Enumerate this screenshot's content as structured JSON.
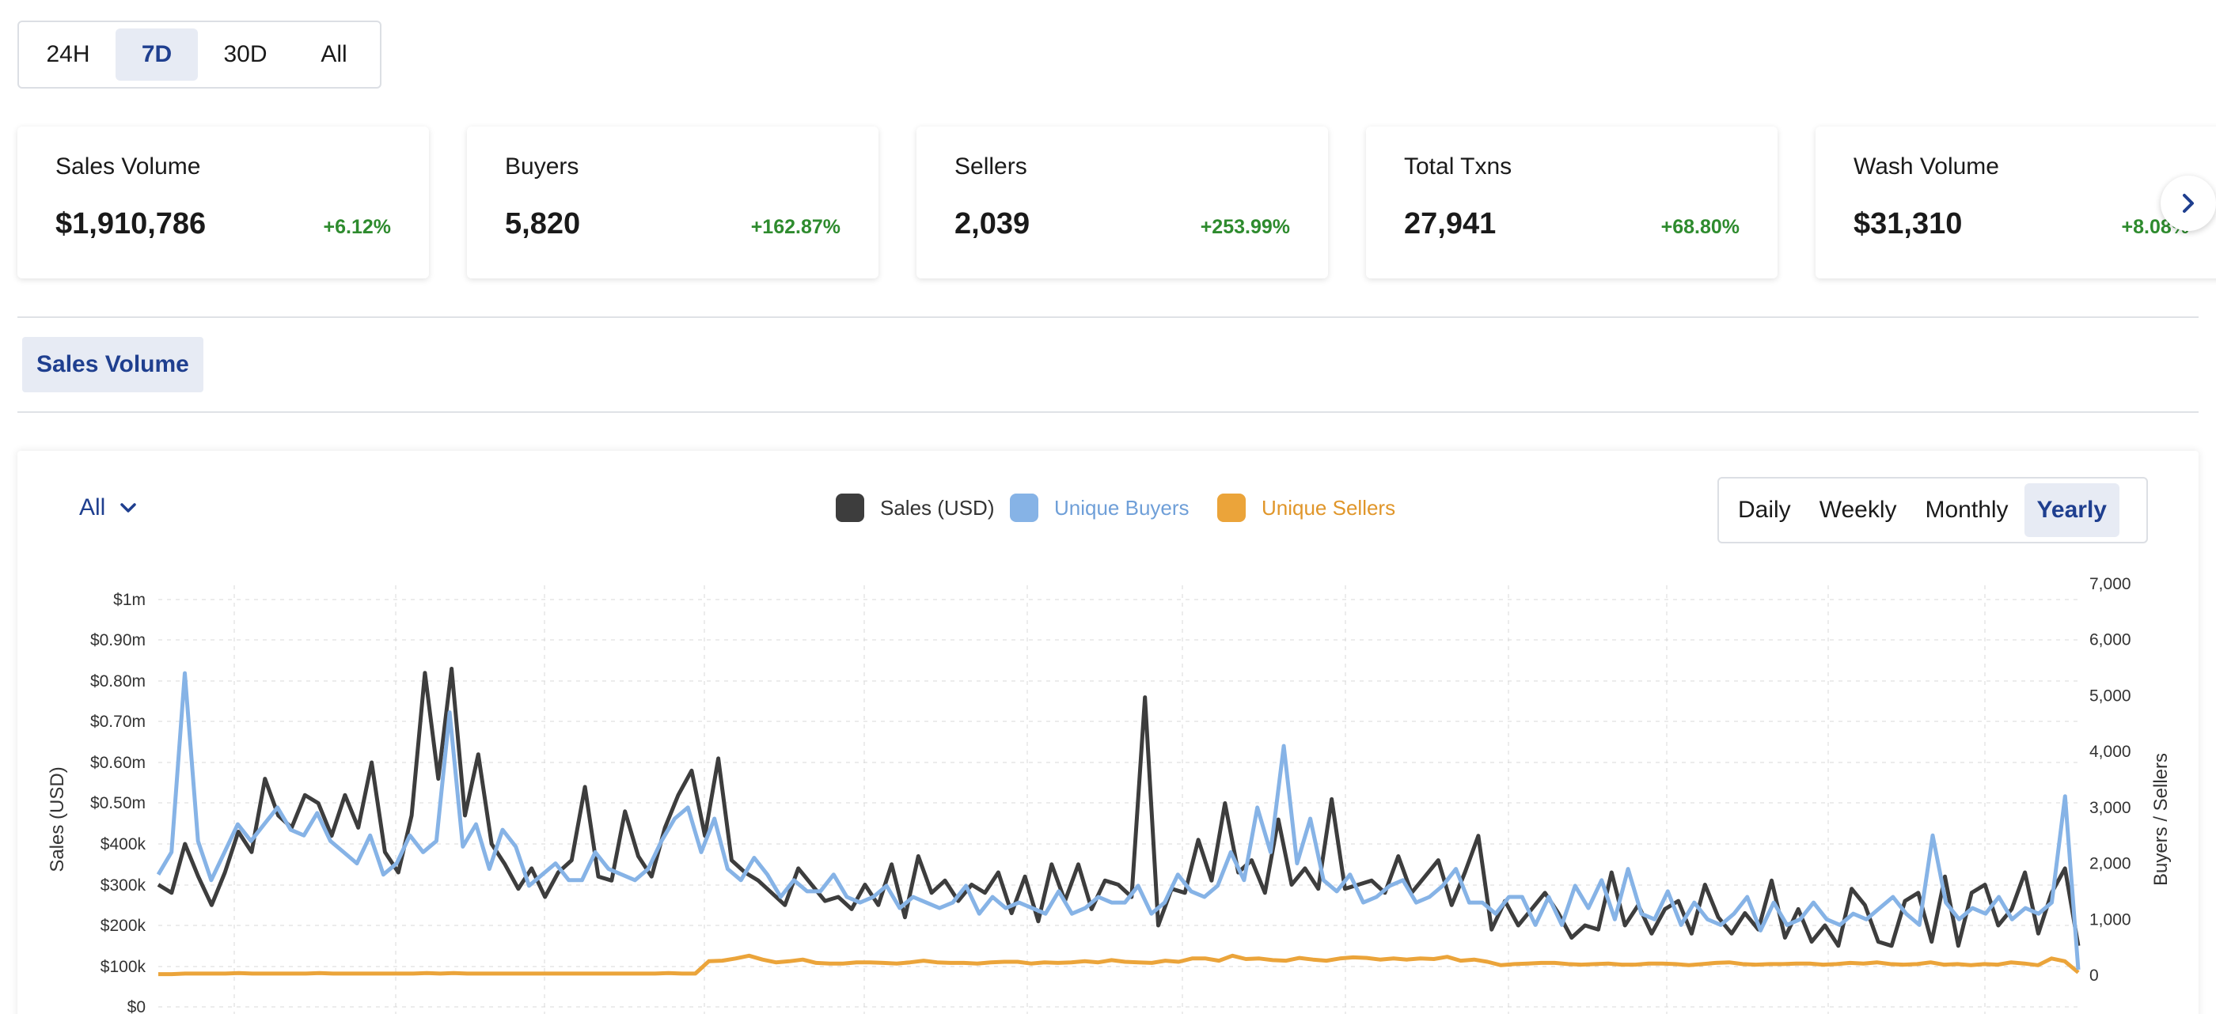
{
  "range": {
    "options": [
      "24H",
      "7D",
      "30D",
      "All"
    ],
    "selected": "7D"
  },
  "stats": [
    {
      "title": "Sales Volume",
      "value": "$1,910,786",
      "change": "+6.12%"
    },
    {
      "title": "Buyers",
      "value": "5,820",
      "change": "+162.87%"
    },
    {
      "title": "Sellers",
      "value": "2,039",
      "change": "+253.99%"
    },
    {
      "title": "Total Txns",
      "value": "27,941",
      "change": "+68.80%"
    },
    {
      "title": "Wash Volume",
      "value": "$31,310",
      "change": "+8.08%"
    }
  ],
  "tabs": {
    "active": "Sales Volume"
  },
  "filter": {
    "label": "All"
  },
  "periods": {
    "options": [
      "Daily",
      "Weekly",
      "Monthly",
      "Yearly"
    ],
    "selected": "Yearly"
  },
  "colors": {
    "sales": "#3d3d3d",
    "buyers": "#86b3e6",
    "sellers": "#eba43a",
    "accent": "#1f3f8f",
    "positive": "#2e8b2e"
  },
  "chart_data": {
    "type": "line",
    "legend": [
      "Sales (USD)",
      "Unique Buyers",
      "Unique Sellers"
    ],
    "ylabel_left": "Sales (USD)",
    "ylabel_right": "Buyers / Sellers",
    "y_left_ticks": [
      "$0",
      "$100k",
      "$200k",
      "$300k",
      "$400k",
      "$0.50m",
      "$0.60m",
      "$0.70m",
      "$0.80m",
      "$0.90m",
      "$1m"
    ],
    "y_right_ticks": [
      "0",
      "1,000",
      "2,000",
      "3,000",
      "4,000",
      "5,000",
      "6,000",
      "7,000"
    ],
    "ylim_left": [
      0,
      1000000
    ],
    "ylim_right": [
      0,
      7000
    ],
    "grid": true,
    "series": [
      {
        "name": "Sales (USD)",
        "axis": "left",
        "values": [
          300000,
          280000,
          400000,
          320000,
          250000,
          330000,
          430000,
          380000,
          560000,
          470000,
          440000,
          520000,
          500000,
          420000,
          520000,
          440000,
          600000,
          380000,
          330000,
          470000,
          820000,
          560000,
          830000,
          470000,
          620000,
          400000,
          350000,
          290000,
          340000,
          270000,
          330000,
          360000,
          540000,
          320000,
          310000,
          480000,
          370000,
          320000,
          440000,
          520000,
          580000,
          420000,
          610000,
          360000,
          330000,
          310000,
          280000,
          250000,
          340000,
          300000,
          260000,
          270000,
          240000,
          300000,
          250000,
          350000,
          220000,
          370000,
          280000,
          310000,
          260000,
          300000,
          280000,
          330000,
          230000,
          320000,
          210000,
          350000,
          260000,
          350000,
          240000,
          310000,
          300000,
          270000,
          760000,
          200000,
          290000,
          280000,
          410000,
          310000,
          500000,
          330000,
          360000,
          280000,
          460000,
          300000,
          340000,
          290000,
          510000,
          290000,
          300000,
          310000,
          280000,
          370000,
          280000,
          320000,
          360000,
          250000,
          330000,
          420000,
          190000,
          260000,
          200000,
          240000,
          280000,
          230000,
          170000,
          200000,
          190000,
          330000,
          200000,
          250000,
          180000,
          240000,
          260000,
          180000,
          300000,
          220000,
          180000,
          230000,
          190000,
          310000,
          170000,
          240000,
          160000,
          200000,
          150000,
          290000,
          250000,
          160000,
          150000,
          260000,
          280000,
          160000,
          320000,
          150000,
          280000,
          300000,
          200000,
          240000,
          330000,
          180000,
          280000,
          340000,
          150000
        ]
      },
      {
        "name": "Unique Buyers",
        "axis": "right",
        "values": [
          1800,
          2200,
          5400,
          2400,
          1700,
          2200,
          2700,
          2400,
          2700,
          3000,
          2600,
          2500,
          2900,
          2400,
          2200,
          2000,
          2500,
          1800,
          2000,
          2500,
          2200,
          2400,
          4700,
          2300,
          2700,
          1900,
          2600,
          2300,
          1600,
          1800,
          2000,
          1700,
          1700,
          2200,
          1900,
          1800,
          1700,
          1900,
          2400,
          2800,
          3000,
          2200,
          2800,
          1900,
          1700,
          2100,
          1800,
          1400,
          1700,
          1500,
          1500,
          1800,
          1400,
          1300,
          1400,
          1600,
          1200,
          1400,
          1300,
          1200,
          1300,
          1600,
          1100,
          1400,
          1200,
          1300,
          1200,
          1100,
          1500,
          1100,
          1200,
          1400,
          1300,
          1300,
          1600,
          1100,
          1300,
          1800,
          1500,
          1400,
          1600,
          2200,
          1700,
          3000,
          2200,
          4100,
          2000,
          2800,
          1700,
          1500,
          1800,
          1300,
          1400,
          1600,
          1700,
          1300,
          1400,
          1600,
          1900,
          1300,
          1300,
          1100,
          1400,
          1400,
          900,
          1400,
          900,
          1600,
          1200,
          1700,
          1000,
          1900,
          1100,
          1000,
          1500,
          900,
          1300,
          1000,
          900,
          1100,
          1400,
          800,
          1300,
          900,
          1000,
          1300,
          1000,
          900,
          1100,
          1000,
          1200,
          1400,
          1100,
          900,
          2500,
          1300,
          1000,
          1200,
          1100,
          1400,
          1000,
          1200,
          1100,
          1300,
          3200,
          100
        ]
      },
      {
        "name": "Unique Sellers",
        "axis": "right",
        "values": [
          20,
          20,
          30,
          30,
          30,
          30,
          40,
          30,
          30,
          30,
          30,
          30,
          40,
          30,
          30,
          30,
          30,
          30,
          30,
          30,
          40,
          30,
          40,
          30,
          30,
          30,
          30,
          30,
          30,
          30,
          30,
          30,
          30,
          30,
          30,
          30,
          30,
          30,
          40,
          30,
          30,
          250,
          260,
          300,
          350,
          280,
          230,
          250,
          280,
          220,
          210,
          210,
          230,
          230,
          220,
          210,
          230,
          260,
          230,
          220,
          220,
          210,
          230,
          240,
          240,
          210,
          230,
          220,
          230,
          250,
          230,
          270,
          240,
          230,
          220,
          260,
          240,
          300,
          300,
          260,
          350,
          290,
          300,
          270,
          260,
          310,
          280,
          260,
          300,
          320,
          310,
          280,
          300,
          280,
          300,
          290,
          330,
          260,
          280,
          240,
          180,
          200,
          210,
          220,
          220,
          200,
          190,
          200,
          210,
          190,
          190,
          210,
          210,
          200,
          180,
          200,
          220,
          230,
          200,
          190,
          200,
          200,
          210,
          210,
          190,
          200,
          220,
          210,
          230,
          200,
          190,
          200,
          230,
          190,
          200,
          180,
          200,
          190,
          230,
          210,
          180,
          300,
          250,
          50
        ]
      }
    ]
  }
}
